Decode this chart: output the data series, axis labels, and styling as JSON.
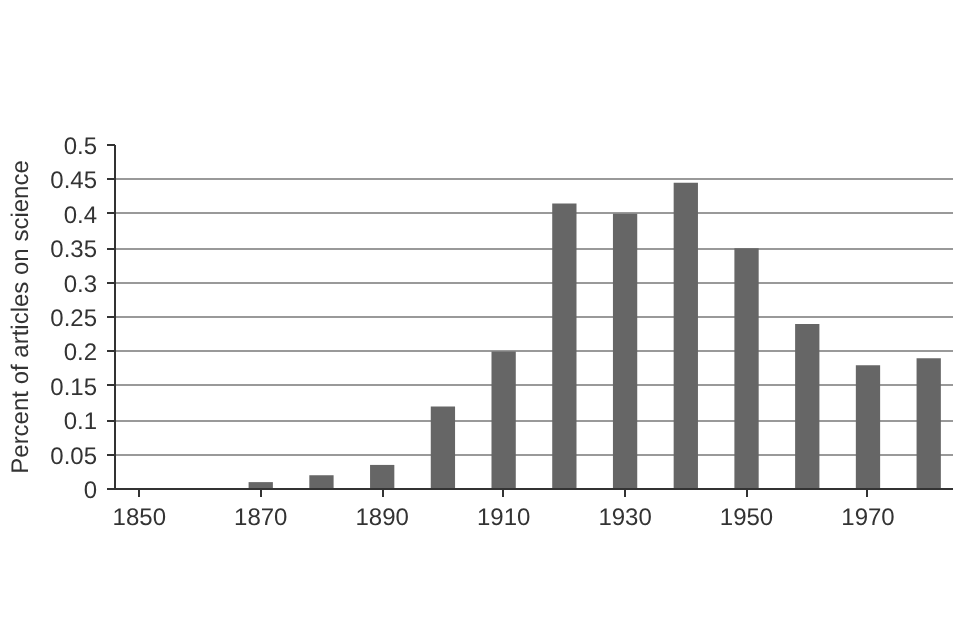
{
  "chart_data": {
    "type": "bar",
    "ylabel": "Percent of articles on science",
    "x": [
      1850,
      1860,
      1870,
      1880,
      1890,
      1900,
      1910,
      1920,
      1930,
      1940,
      1950,
      1960,
      1970,
      1980
    ],
    "values": [
      0,
      0,
      0.01,
      0.02,
      0.035,
      0.12,
      0.2,
      0.415,
      0.4,
      0.445,
      0.35,
      0.24,
      0.18,
      0.19
    ],
    "color": "#666666",
    "xlim": [
      1846,
      1984
    ],
    "xticks": [
      1850,
      1870,
      1890,
      1910,
      1930,
      1950,
      1970
    ],
    "ylim": [
      0,
      0.5
    ],
    "yticks": [
      0,
      0.05,
      0.1,
      0.15,
      0.2,
      0.25,
      0.3,
      0.35,
      0.4,
      0.45,
      0.5
    ],
    "grid": "y"
  }
}
